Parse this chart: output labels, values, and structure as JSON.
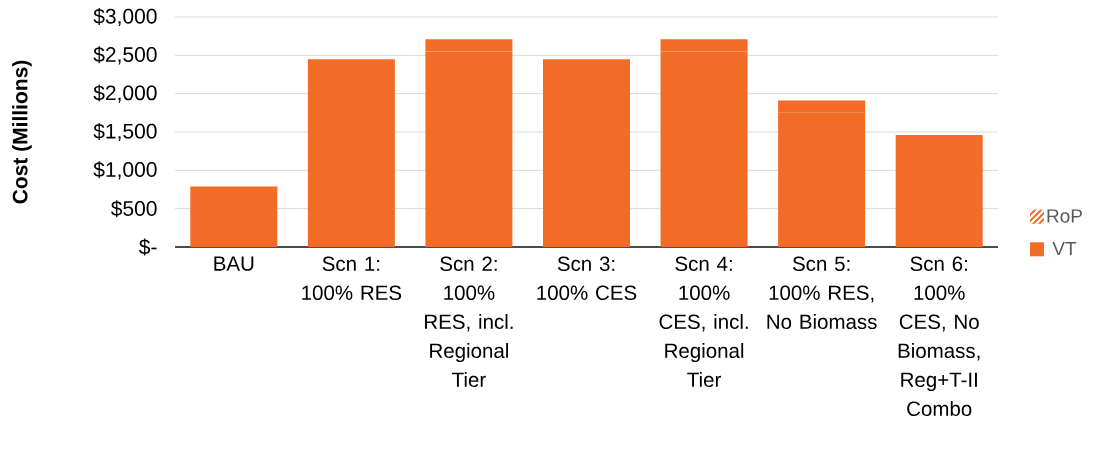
{
  "chart_data": {
    "type": "bar",
    "stacked": true,
    "ylabel": "Cost (Millions)",
    "categories": [
      "BAU",
      "Scn 1: 100% RES",
      "Scn 2: 100% RES, incl. Regional Tier",
      "Scn 3: 100% CES",
      "Scn 4: 100% CES, incl. Regional Tier",
      "Scn 5: 100% RES, No Biomass",
      "Scn 6: 100% CES, No Biomass, Reg+T-II Combo"
    ],
    "series": [
      {
        "name": "VT",
        "color": "#f26b27",
        "values": [
          790,
          2450,
          2550,
          2450,
          2550,
          1750,
          1160
        ]
      },
      {
        "name": "RoP",
        "color": "#f26b27",
        "values": [
          0,
          0,
          160,
          0,
          160,
          160,
          300
        ]
      }
    ],
    "ylim": [
      0,
      3000
    ],
    "yticks": [
      {
        "value": 0,
        "label": "$-"
      },
      {
        "value": 500,
        "label": "$500"
      },
      {
        "value": 1000,
        "label": "$1,000"
      },
      {
        "value": 1500,
        "label": "$1,500"
      },
      {
        "value": 2000,
        "label": "$2,000"
      },
      {
        "value": 2500,
        "label": "$2,500"
      },
      {
        "value": 3000,
        "label": "$3,000"
      }
    ],
    "grid": "y",
    "legend": "right"
  }
}
